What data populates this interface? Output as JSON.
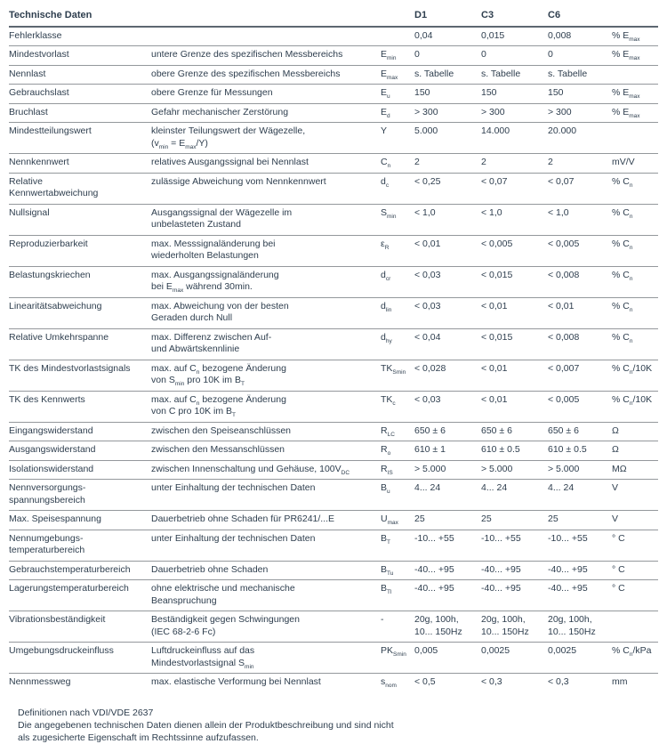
{
  "page": {
    "title": "Technische Daten",
    "columns": [
      "D1",
      "C3",
      "C6"
    ],
    "rows": [
      {
        "name": "Fehlerklasse",
        "desc": "",
        "sym": "",
        "values": [
          "0,04",
          "0,015",
          "0,008"
        ],
        "unit": "% E<sub>max</sub>"
      },
      {
        "name": "Mindestvorlast",
        "desc": "untere Grenze des spezifischen Messbereichs",
        "sym": "E<sub>min</sub>",
        "values": [
          "0",
          "0",
          "0"
        ],
        "unit": "% E<sub>max</sub>"
      },
      {
        "name": "Nennlast",
        "desc": "obere Grenze des spezifischen Messbereichs",
        "sym": "E<sub>max</sub>",
        "values": [
          "s. Tabelle",
          "s. Tabelle",
          "s. Tabelle"
        ],
        "unit": ""
      },
      {
        "name": "Gebrauchslast",
        "desc": "obere Grenze für Messungen",
        "sym": "E<sub>u</sub>",
        "values": [
          "150",
          "150",
          "150"
        ],
        "unit": "% E<sub>max</sub>"
      },
      {
        "name": "Bruchlast",
        "desc": "Gefahr mechanischer Zerstörung",
        "sym": "E<sub>d</sub>",
        "values": [
          "> 300",
          "> 300",
          "> 300"
        ],
        "unit": "% E<sub>max</sub>"
      },
      {
        "name": "Mindestteilungswert",
        "desc": "kleinster Teilungswert der Wägezelle,\n(v<sub>min</sub> = E<sub>max</sub>/Y)",
        "sym": "Y",
        "values": [
          "5.000",
          "14.000",
          "20.000"
        ],
        "unit": ""
      },
      {
        "name": "Nennkennwert",
        "desc": "relatives Ausgangssignal bei Nennlast",
        "sym": "C<sub>n</sub>",
        "values": [
          "2",
          "2",
          "2"
        ],
        "unit": "mV/V"
      },
      {
        "name": "Relative\nKennwertabweichung",
        "desc": "zulässige Abweichung vom Nennkennwert",
        "sym": "d<sub>c</sub>",
        "values": [
          "< 0,25",
          "< 0,07",
          "< 0,07"
        ],
        "unit": "% C<sub>n</sub>"
      },
      {
        "name": "Nullsignal",
        "desc": "Ausgangssignal der Wägezelle im\nunbelasteten Zustand",
        "sym": "S<sub>min</sub>",
        "values": [
          "< 1,0",
          "< 1,0",
          "< 1,0"
        ],
        "unit": "% C<sub>n</sub>"
      },
      {
        "name": "Reproduzierbarkeit",
        "desc": "max. Messsignaländerung bei\nwiederholten Belastungen",
        "sym": "ε<sub>R</sub>",
        "values": [
          "< 0,01",
          "< 0,005",
          "< 0,005"
        ],
        "unit": "% C<sub>n</sub>"
      },
      {
        "name": "Belastungskriechen",
        "desc": "max. Ausgangssignaländerung\nbei E<sub>max</sub> während 30min.",
        "sym": "d<sub>cr</sub>",
        "values": [
          "< 0,03",
          "< 0,015",
          "< 0,008"
        ],
        "unit": "% C<sub>n</sub>"
      },
      {
        "name": "Linearitätsabweichung",
        "desc": "max. Abweichung von der besten\nGeraden durch Null",
        "sym": "d<sub>lin</sub>",
        "values": [
          "< 0,03",
          "< 0,01",
          "< 0,01"
        ],
        "unit": "% C<sub>n</sub>"
      },
      {
        "name": "Relative Umkehrspanne",
        "desc": "max. Differenz zwischen Auf-\nund Abwärtskennlinie",
        "sym": "d<sub>hy</sub>",
        "values": [
          "< 0,04",
          "< 0,015",
          "< 0,008"
        ],
        "unit": "% C<sub>n</sub>"
      },
      {
        "name": "TK des Mindestvorlastsignals",
        "desc": "max. auf C<sub>n</sub> bezogene Änderung\nvon S<sub>min</sub> pro 10K im B<sub>T</sub>",
        "sym": "TK<sub>Smin</sub>",
        "values": [
          "< 0,028",
          "< 0,01",
          "< 0,007"
        ],
        "unit": "% C<sub>n</sub>/10K"
      },
      {
        "name": "TK des Kennwerts",
        "desc": "max. auf C<sub>n</sub> bezogene Änderung\nvon C pro 10K im B<sub>T</sub>",
        "sym": "TK<sub>c</sub>",
        "values": [
          "< 0,03",
          "< 0,01",
          "< 0,005"
        ],
        "unit": "% C<sub>n</sub>/10K"
      },
      {
        "name": "Eingangswiderstand",
        "desc": "zwischen den Speiseanschlüssen",
        "sym": "R<sub>LC</sub>",
        "values": [
          "650 ± 6",
          "650 ± 6",
          "650 ± 6"
        ],
        "unit": "Ω"
      },
      {
        "name": "Ausgangswiderstand",
        "desc": "zwischen den Messanschlüssen",
        "sym": "R<sub>o</sub>",
        "values": [
          "610 ± 1",
          "610 ± 0.5",
          "610 ± 0.5"
        ],
        "unit": "Ω"
      },
      {
        "name": "Isolationswiderstand",
        "desc": "zwischen Innenschaltung und Gehäuse, 100V<sub>DC</sub>",
        "sym": "R<sub>IS</sub>",
        "values": [
          "> 5.000",
          "> 5.000",
          "> 5.000"
        ],
        "unit": "MΩ"
      },
      {
        "name": "Nennversorgungs-\nspannungsbereich",
        "desc": "unter Einhaltung der technischen Daten",
        "sym": "B<sub>u</sub>",
        "values": [
          "4... 24",
          "4... 24",
          "4... 24"
        ],
        "unit": "V"
      },
      {
        "name": "Max. Speisespannung",
        "desc": "Dauerbetrieb ohne Schaden für PR6241/...E",
        "sym": "U<sub>max</sub>",
        "values": [
          "25",
          "25",
          "25"
        ],
        "unit": "V"
      },
      {
        "name": "Nennumgebungs-\ntemperaturbereich",
        "desc": "unter Einhaltung der technischen Daten",
        "sym": "B<sub>T</sub>",
        "values": [
          "-10... +55",
          "-10... +55",
          "-10... +55"
        ],
        "unit": "° C"
      },
      {
        "name": "Gebrauchstemperaturbereich",
        "desc": "Dauerbetrieb ohne Schaden",
        "sym": "B<sub>Tu</sub>",
        "values": [
          "-40... +95",
          "-40... +95",
          "-40... +95"
        ],
        "unit": "° C"
      },
      {
        "name": "Lagerungstemperaturbereich",
        "desc": "ohne elektrische und mechanische\nBeanspruchung",
        "sym": "B<sub>Tl</sub>",
        "values": [
          "-40... +95",
          "-40... +95",
          "-40... +95"
        ],
        "unit": "° C"
      },
      {
        "name": "Vibrationsbeständigkeit",
        "desc": "Beständigkeit gegen Schwingungen\n(IEC 68-2-6 Fc)",
        "sym": "-",
        "values": [
          "20g, 100h,\n10... 150Hz",
          "20g, 100h,\n10... 150Hz",
          "20g, 100h,\n10... 150Hz"
        ],
        "unit": ""
      },
      {
        "name": "Umgebungsdruckeinfluss",
        "desc": "Luftdruckeinfluss auf das\nMindestvorlastsignal S<sub>min</sub>",
        "sym": "PK<sub>Smin</sub>",
        "values": [
          "0,005",
          "0,0025",
          "0,0025"
        ],
        "unit": "% C<sub>n</sub>/kPa"
      },
      {
        "name": "Nennmessweg",
        "desc": "max. elastische Verformung bei Nennlast",
        "sym": "s<sub>nom</sub>",
        "values": [
          "< 0,5",
          "< 0,3",
          "< 0,3"
        ],
        "unit": "mm"
      }
    ],
    "footer": [
      "Definitionen nach VDI/VDE 2637",
      "Die angegebenen technischen Daten dienen allein der Produktbeschreibung und sind nicht",
      "als zugesicherte Eigenschaft im Rechtssinne aufzufassen."
    ]
  }
}
